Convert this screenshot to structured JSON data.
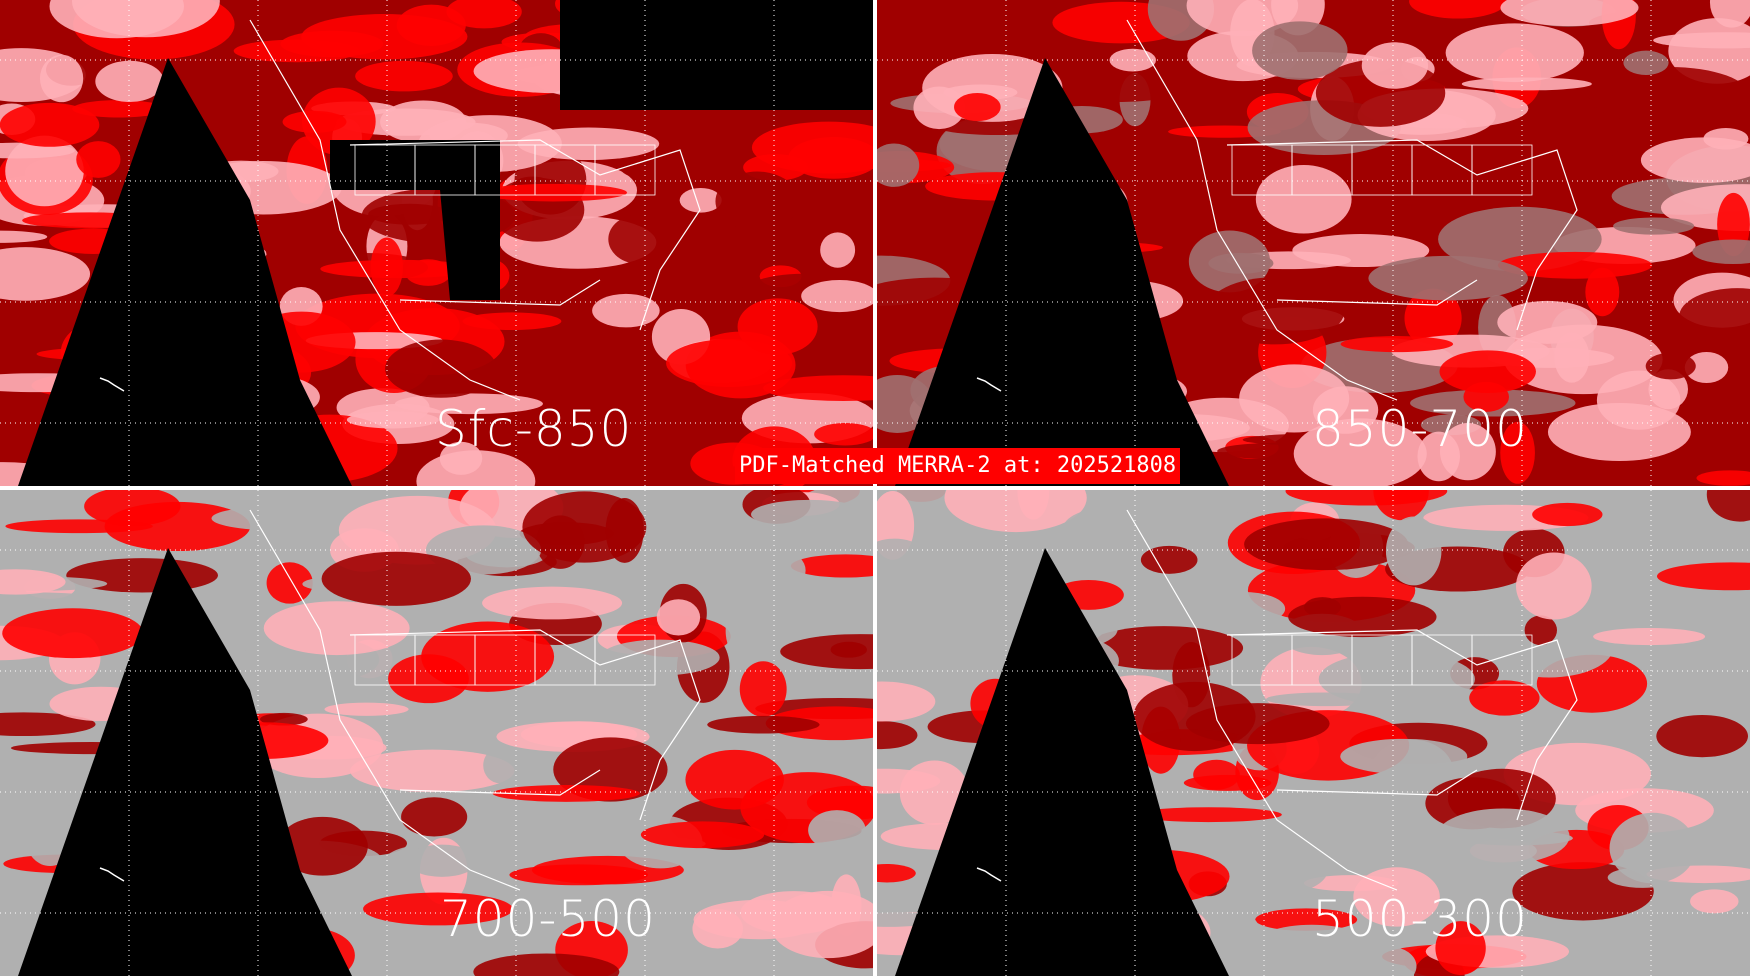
{
  "title": "PDF-Matched MERRA-2 at: 202521808",
  "panels": [
    {
      "label": "Sfc-850"
    },
    {
      "label": "850-700"
    },
    {
      "label": "700-500"
    },
    {
      "label": "500-300"
    }
  ],
  "colors": {
    "no_data": "#000000",
    "class_gray": "#b0b0b0",
    "class_dark_red": "#a00000",
    "class_red": "#ff0000",
    "class_pink": "#ffb0b8",
    "class_mauve": "#a07070",
    "boundaries": "#ffffff"
  }
}
